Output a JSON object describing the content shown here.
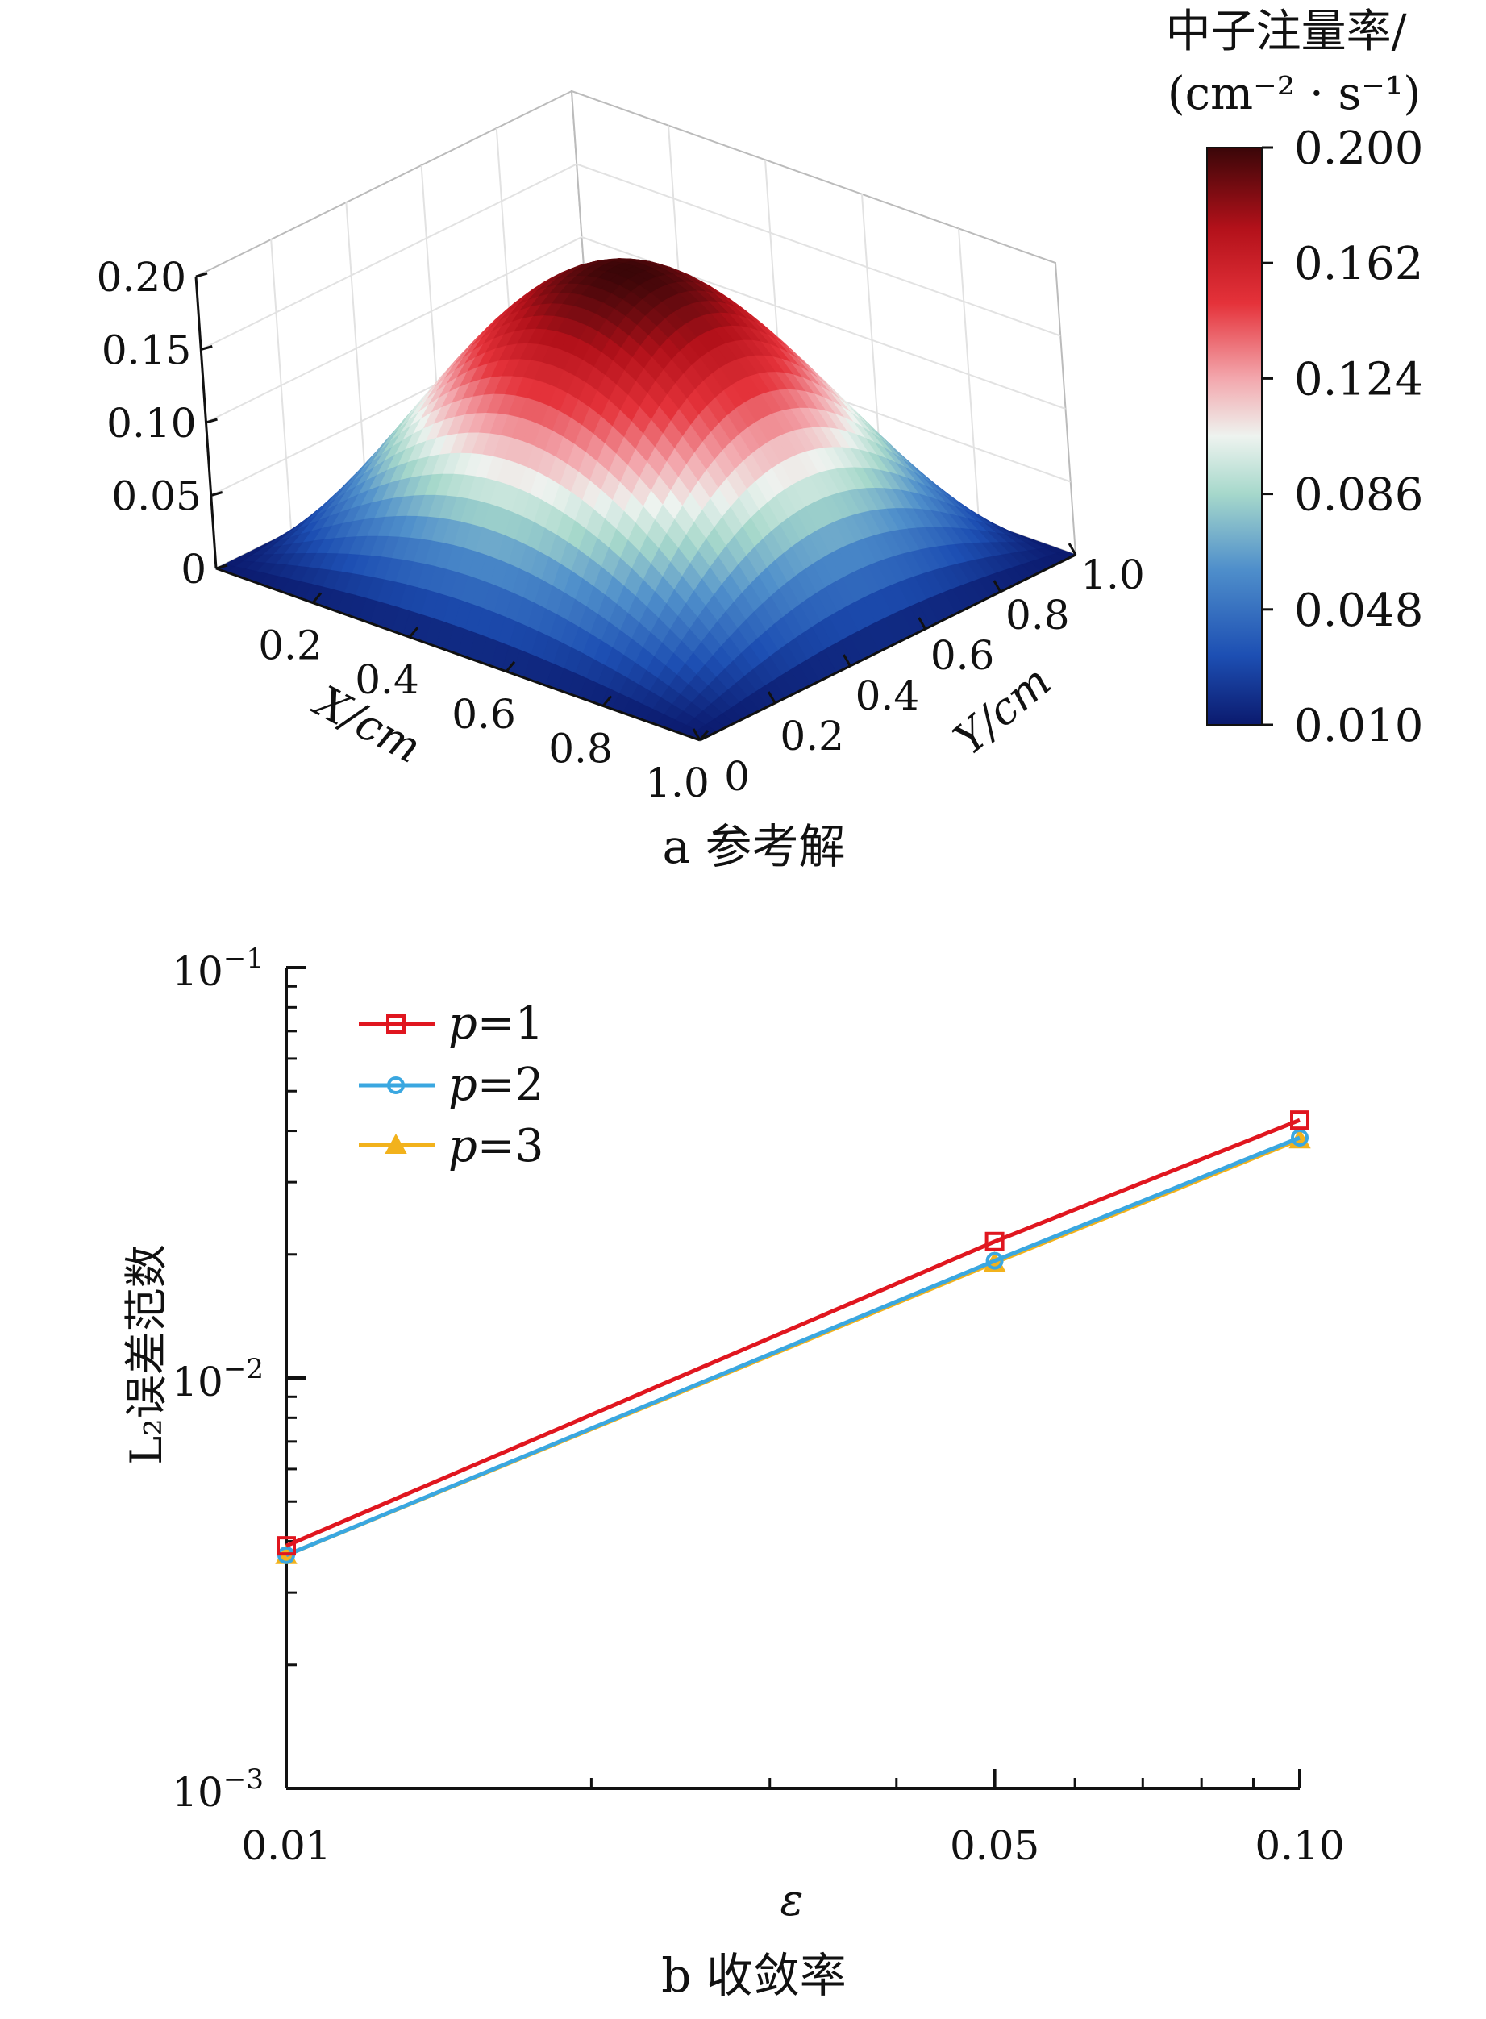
{
  "colors": {
    "surface_low": "#0b1a6e",
    "surface_mid": "#e8f2ee",
    "surface_high": "#3a0608",
    "p1": "#e0161f",
    "p2": "#3aa7e0",
    "p3": "#f2b21c",
    "axis": "#111111"
  },
  "chart_data": [
    {
      "type": "surface",
      "caption": "a 参考解",
      "colorbar": {
        "title_line1": "中子注量率/",
        "title_line2": "(cm⁻² · s⁻¹)",
        "ticks": [
          "0.200",
          "0.162",
          "0.124",
          "0.086",
          "0.048",
          "0.010"
        ],
        "range": [
          0.01,
          0.2
        ]
      },
      "x_axis": {
        "label": "X/cm",
        "ticks": [
          "0.2",
          "0.4",
          "0.6",
          "0.8",
          "1.0"
        ],
        "range": [
          0,
          1
        ]
      },
      "y_axis": {
        "label": "Y/cm",
        "ticks": [
          "0",
          "0.2",
          "0.4",
          "0.6",
          "0.8",
          "1.0"
        ],
        "range": [
          0,
          1
        ]
      },
      "z_axis": {
        "ticks": [
          "0",
          "0.05",
          "0.10",
          "0.15",
          "0.20"
        ],
        "range": [
          0,
          0.2
        ]
      },
      "function": "peak 0.20 at x=0.5, y=0.5, zero on boundary",
      "peak": 0.2
    },
    {
      "type": "line",
      "caption": "b 收敛率",
      "xlabel": "ε",
      "ylabel": "L₂误差范数",
      "x_scale": "log",
      "y_scale": "log",
      "xlim": [
        0.01,
        0.1
      ],
      "ylim": [
        0.001,
        0.1
      ],
      "x_ticks": [
        "0.01",
        "0.05",
        "0.10"
      ],
      "y_ticks": [
        {
          "base": "10",
          "exp": "−1"
        },
        {
          "base": "10",
          "exp": "−2"
        },
        {
          "base": "10",
          "exp": "−3"
        }
      ],
      "x": [
        0.01,
        0.05,
        0.1
      ],
      "series": [
        {
          "name": "p=1",
          "name_var": "p",
          "name_rest": "=1",
          "marker": "square",
          "values": [
            0.0039,
            0.0215,
            0.0425
          ]
        },
        {
          "name": "p=2",
          "name_var": "p",
          "name_rest": "=2",
          "marker": "circle",
          "values": [
            0.0037,
            0.0193,
            0.0385
          ]
        },
        {
          "name": "p=3",
          "name_var": "p",
          "name_rest": "=3",
          "marker": "triangle",
          "values": [
            0.0037,
            0.0191,
            0.0381
          ]
        }
      ],
      "legend": "top-left"
    }
  ]
}
